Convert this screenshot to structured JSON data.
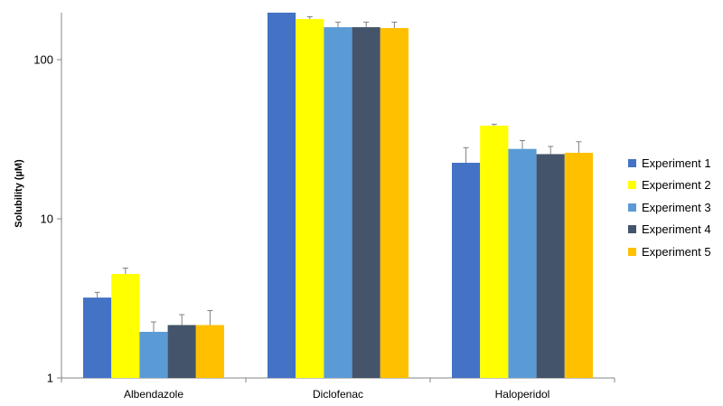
{
  "chart_data": {
    "type": "bar",
    "ylabel": "Solubility (µM)",
    "xlabel": "",
    "yscale": "log",
    "ylim": [
      1,
      200
    ],
    "yticks": [
      {
        "value": 1,
        "label": "1"
      },
      {
        "value": 10,
        "label": "10"
      },
      {
        "value": 100,
        "label": "100"
      }
    ],
    "categories": [
      "Albendazole",
      "Diclofenac",
      "Haloperidol"
    ],
    "series": [
      {
        "name": "Experiment 1",
        "color": "#4472C4",
        "values": [
          3.2,
          200,
          22.5
        ],
        "errors": [
          0.25,
          0,
          5.5
        ]
      },
      {
        "name": "Experiment 2",
        "color": "#FFFF00",
        "values": [
          4.5,
          180,
          38.5
        ],
        "errors": [
          0.4,
          6,
          0.8
        ]
      },
      {
        "name": "Experiment 3",
        "color": "#5B9BD5",
        "values": [
          1.95,
          160,
          27.5
        ],
        "errors": [
          0.3,
          12,
          3.5
        ]
      },
      {
        "name": "Experiment 4",
        "color": "#44546A",
        "values": [
          2.15,
          160,
          25.5
        ],
        "errors": [
          0.35,
          12,
          3
        ]
      },
      {
        "name": "Experiment 5",
        "color": "#FFC000",
        "values": [
          2.15,
          158,
          26
        ],
        "errors": [
          0.5,
          14,
          4.5
        ]
      }
    ],
    "legend_position": "right",
    "grid": false
  }
}
